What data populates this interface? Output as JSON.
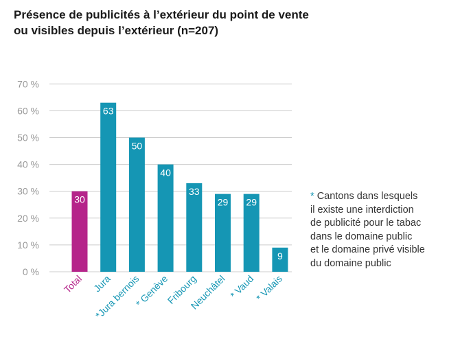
{
  "title_lines": [
    "Présence de publicités à l’extérieur du point de vente",
    "ou visibles depuis l’extérieur (n=207)"
  ],
  "footnote": {
    "marker": "*",
    "lines": [
      "Cantons dans lesquels",
      "il existe une interdiction",
      "de publicité pour le tabac",
      "dans le domaine public",
      "et le domaine privé visible",
      "du domaine public"
    ]
  },
  "chart_data": {
    "type": "bar",
    "title": "Présence de publicités à l’extérieur du point de vente ou visibles depuis l’extérieur (n=207)",
    "categories": [
      "Total",
      "Jura",
      "*Jura bernois",
      "* Genève",
      "Fribourg",
      "Neuchâtel",
      "* Vaud",
      "* Valais"
    ],
    "values": [
      30,
      63,
      50,
      40,
      33,
      29,
      29,
      9
    ],
    "data_labels": [
      "30",
      "63",
      "50",
      "40",
      "33",
      "29",
      "29",
      "9"
    ],
    "y_ticks": [
      "0 %",
      "10 %",
      "20 %",
      "30 %",
      "40 %",
      "50 %",
      "60 %",
      "70 %"
    ],
    "ylim": [
      0,
      70
    ],
    "xlabel": "",
    "ylabel": "",
    "grid": true,
    "colors": {
      "total": "#b5248a",
      "cantons": "#1596b4",
      "grid": "#cccccc",
      "axis_text": "#999999"
    }
  }
}
